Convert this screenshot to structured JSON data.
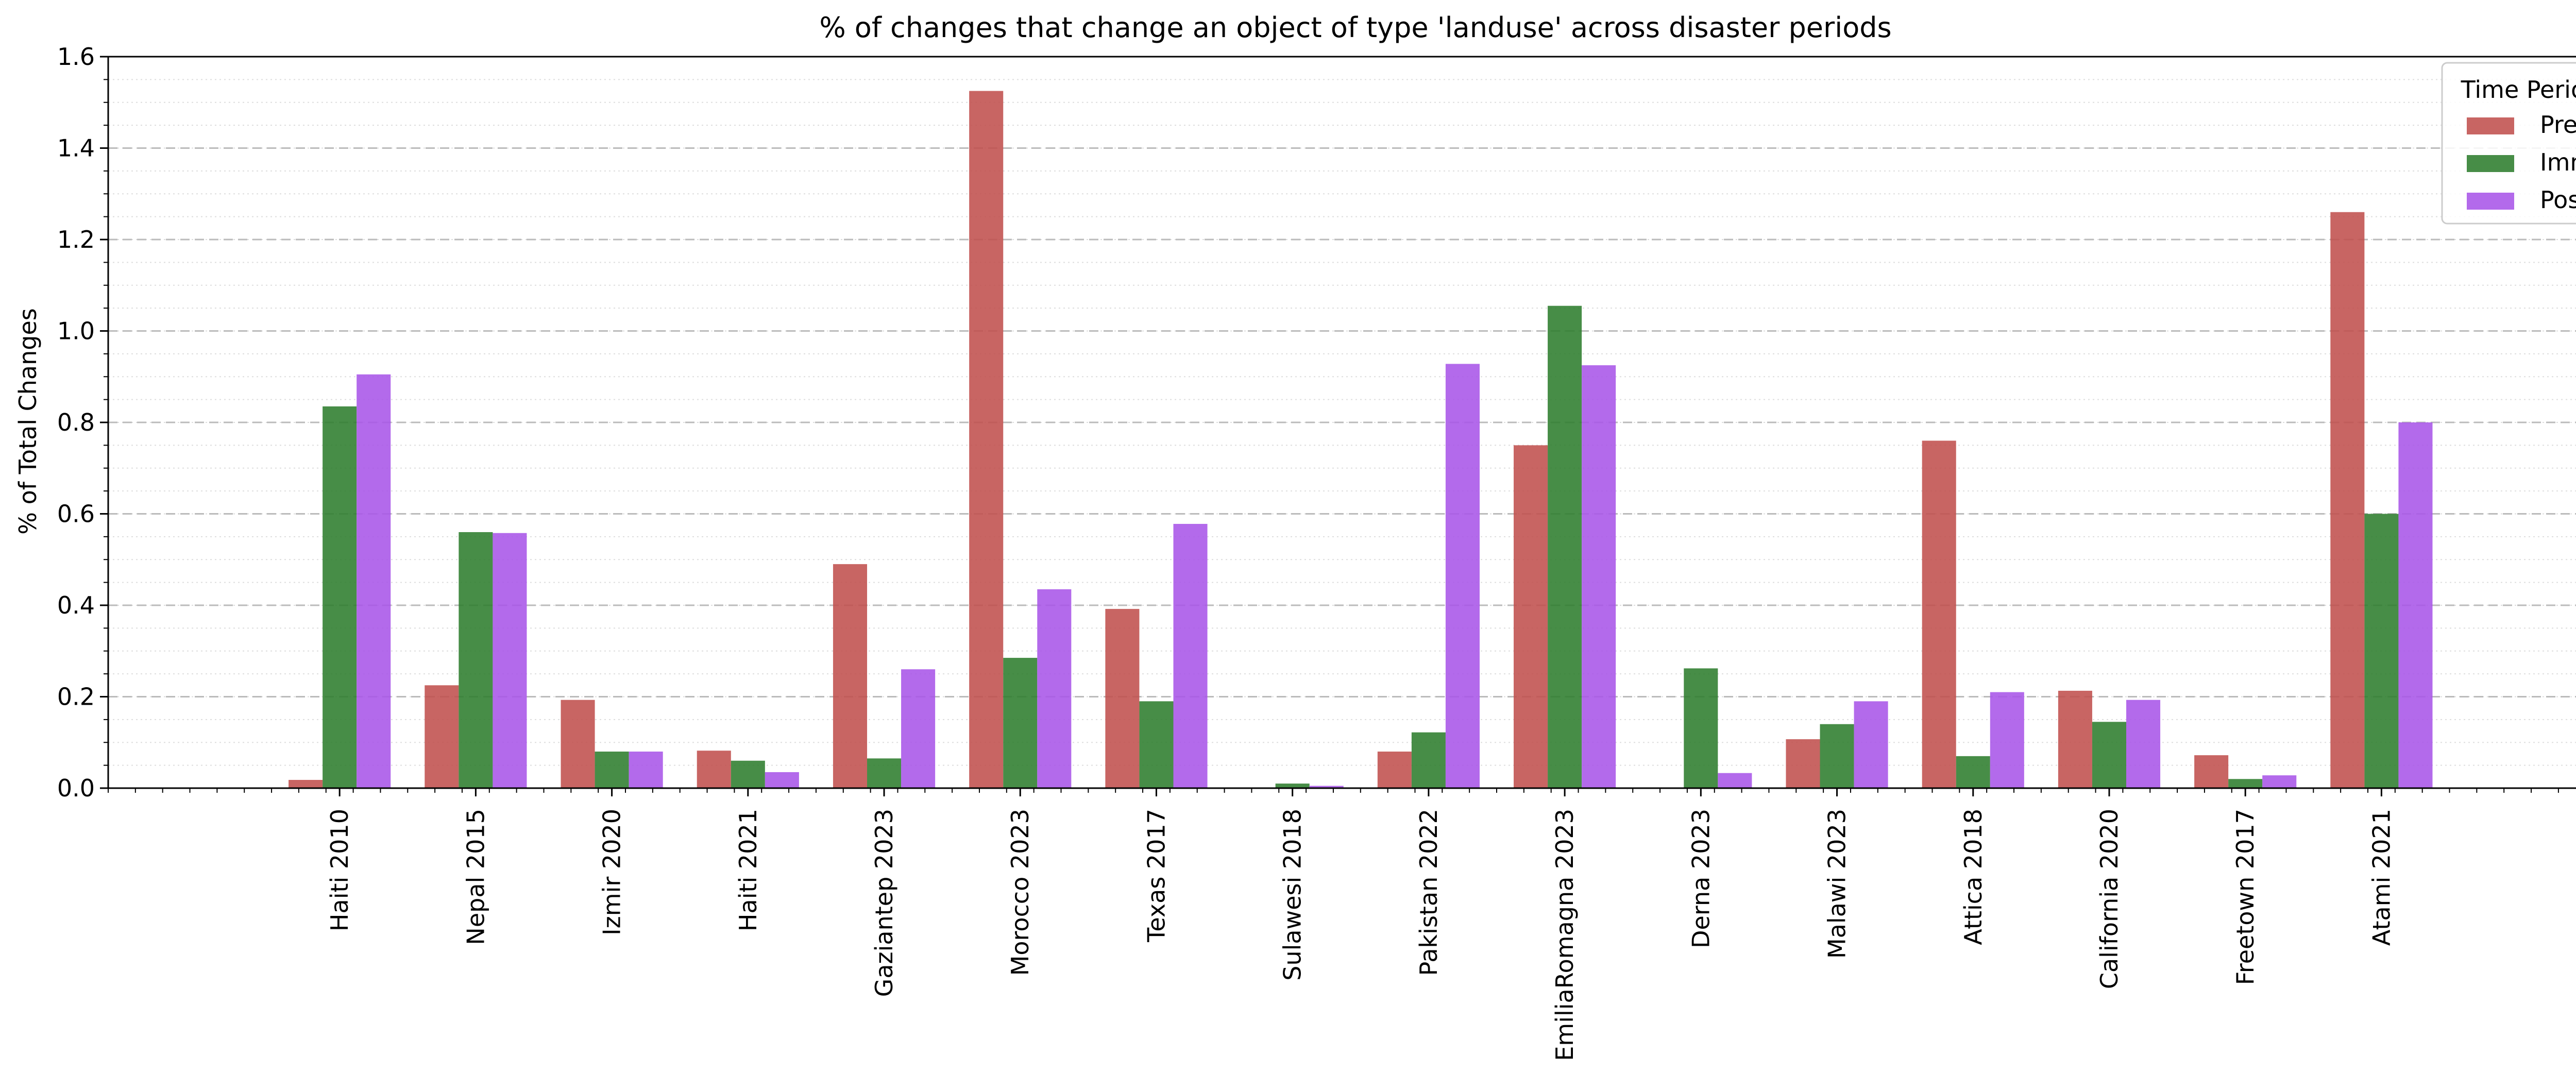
{
  "chart_data": {
    "type": "bar",
    "title": "% of changes that change an object of type 'landuse' across disaster periods",
    "xlabel": "",
    "ylabel": "% of Total Changes",
    "ylim": [
      0,
      1.6
    ],
    "yticks": [
      "0.0",
      "0.2",
      "0.4",
      "0.6",
      "0.8",
      "1.0",
      "1.2",
      "1.4",
      "1.6"
    ],
    "grid": true,
    "legend": {
      "title": "Time Period",
      "placement": "top-right"
    },
    "categories": [
      "Haiti 2010",
      "Nepal 2015",
      "Izmir 2020",
      "Haiti 2021",
      "Gaziantep 2023",
      "Morocco 2023",
      "Texas 2017",
      "Sulawesi 2018",
      "Pakistan 2022",
      "EmiliaRomagna 2023",
      "Derna 2023",
      "Malawi 2023",
      "Attica 2018",
      "California 2020",
      "Freetown 2017",
      "Atami 2021"
    ],
    "series": [
      {
        "name": "Pre",
        "color": "#c0504d",
        "values": [
          0.018,
          0.225,
          0.193,
          0.082,
          0.49,
          1.525,
          0.392,
          0.0,
          0.08,
          0.75,
          0.0,
          0.107,
          0.76,
          0.213,
          0.072,
          1.26
        ]
      },
      {
        "name": "Imm",
        "color": "#2e7d2e",
        "values": [
          0.835,
          0.56,
          0.08,
          0.06,
          0.065,
          0.285,
          0.19,
          0.01,
          0.122,
          1.055,
          0.262,
          0.14,
          0.07,
          0.145,
          0.02,
          0.6
        ]
      },
      {
        "name": "Post",
        "color": "#a855e8",
        "values": [
          0.905,
          0.558,
          0.08,
          0.035,
          0.26,
          0.435,
          0.578,
          0.005,
          0.928,
          0.925,
          0.033,
          0.19,
          0.21,
          0.193,
          0.028,
          0.8
        ]
      }
    ]
  }
}
